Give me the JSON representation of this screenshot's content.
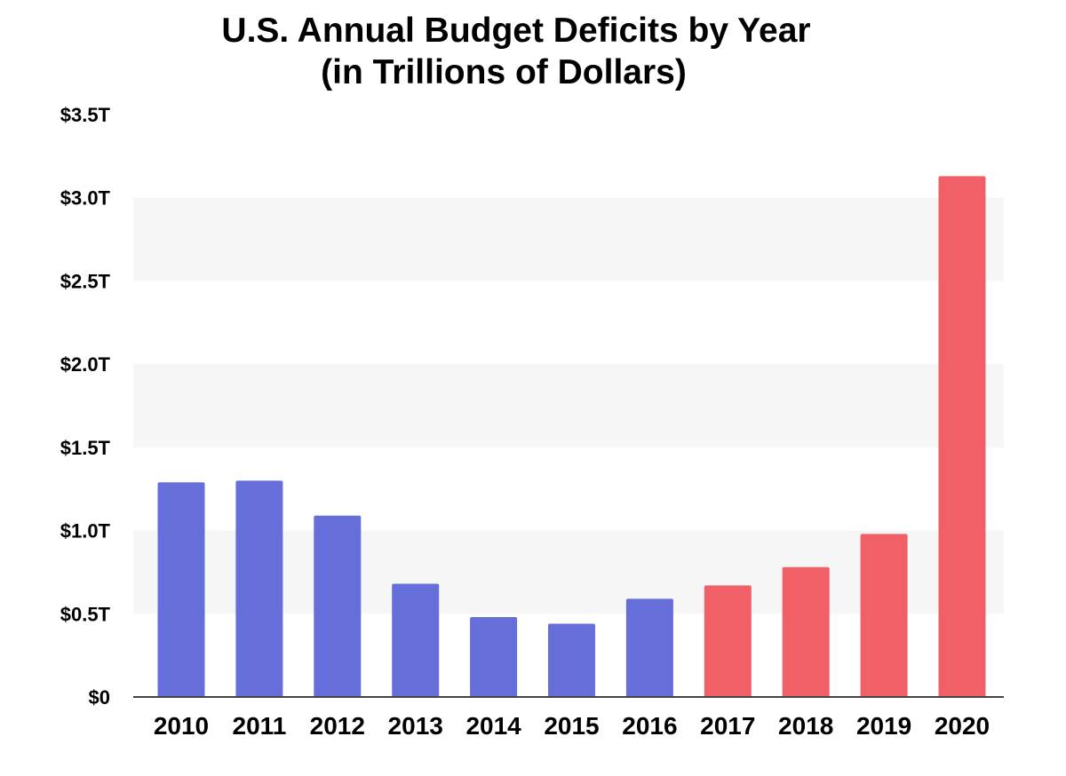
{
  "chart_data": {
    "type": "bar",
    "title_lines": [
      "U.S. Annual Budget Deficits by Year",
      "(in Trillions of Dollars)"
    ],
    "xlabel": "",
    "ylabel": "",
    "categories": [
      "2010",
      "2011",
      "2012",
      "2013",
      "2014",
      "2015",
      "2016",
      "2017",
      "2018",
      "2019",
      "2020"
    ],
    "values": [
      1.29,
      1.3,
      1.09,
      0.68,
      0.48,
      0.44,
      0.59,
      0.67,
      0.78,
      0.98,
      3.13
    ],
    "bar_colors": [
      "#666ed9",
      "#666ed9",
      "#666ed9",
      "#666ed9",
      "#666ed9",
      "#666ed9",
      "#666ed9",
      "#f06066",
      "#f06066",
      "#f06066",
      "#f06066"
    ],
    "ylim": [
      0,
      3.5
    ],
    "yticks": [
      0,
      0.5,
      1.0,
      1.5,
      2.0,
      2.5,
      3.0,
      3.5
    ],
    "ytick_labels": [
      "$0",
      "$0.5T",
      "$1.0T",
      "$1.5T",
      "$2.0T",
      "$2.5T",
      "$3.0T",
      "$3.5T"
    ],
    "grid": "alternating horizontal bands",
    "legend": "none",
    "colors": {
      "band": "#f6f6f6",
      "axis": "#444444"
    }
  }
}
